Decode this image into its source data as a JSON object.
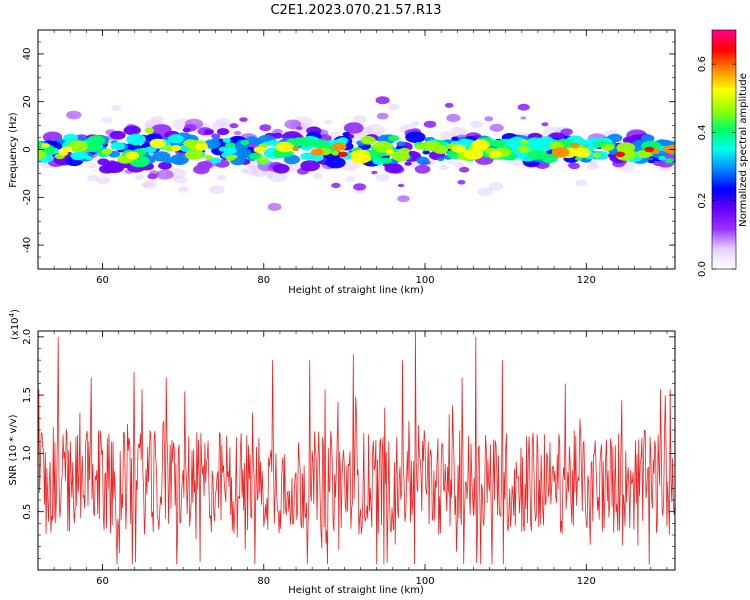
{
  "figure": {
    "title": "C2E1.2023.070.21.57.R13"
  },
  "chart_data": [
    {
      "type": "heatmap",
      "xlabel": "Height of straight line (km)",
      "ylabel": "Frequency (Hz)",
      "xlim": [
        52,
        131
      ],
      "ylim": [
        -50,
        50
      ],
      "xticks": [
        60,
        80,
        100,
        120
      ],
      "yticks": [
        -40,
        -20,
        0,
        20,
        40
      ],
      "grid": false,
      "colorbar": {
        "label": "Normalized spectral amplitude",
        "range": [
          0,
          0.7
        ],
        "ticks": [
          "0.0",
          "0.2",
          "0.4",
          "0.6"
        ],
        "colormap": [
          "#ffffff",
          "#e6d2ff",
          "#9933ff",
          "#6a00ff",
          "#0000ff",
          "#0088ff",
          "#00ffee",
          "#00ff66",
          "#99ff00",
          "#ffff00",
          "#ff8800",
          "#ff0000",
          "#ff0088"
        ]
      },
      "description_of_values": "Spectral energy band centred near 0 Hz (roughly -15 to +15 Hz), broader spread between 60 and 100 km with isolated high-amplitude spots near 124 and 128 km"
    },
    {
      "type": "line",
      "xlabel": "Height of straight line (km)",
      "ylabel": "SNR (10 * v/v)",
      "ylabel_scale": "(x10^4)",
      "xlim": [
        52,
        131
      ],
      "ylim": [
        0,
        2.05
      ],
      "xticks": [
        60,
        80,
        100,
        120
      ],
      "yticks": [
        0.5,
        1.0,
        1.5,
        2.0
      ],
      "series": [
        {
          "color": "#ee2222",
          "mean": 0.75,
          "peaks": [
            [
              54.5,
              2.0
            ],
            [
              58.6,
              1.65
            ],
            [
              63.9,
              1.7
            ],
            [
              67.9,
              1.65
            ],
            [
              81.1,
              1.8
            ],
            [
              85.7,
              1.8
            ],
            [
              91.1,
              1.85
            ],
            [
              97.2,
              1.8
            ],
            [
              98.8,
              2.05
            ],
            [
              104.6,
              1.65
            ],
            [
              106.3,
              2.0
            ],
            [
              109.6,
              1.8
            ],
            [
              117.4,
              1.6
            ],
            [
              129.8,
              1.5
            ]
          ],
          "floor_min": 0.05
        }
      ]
    }
  ]
}
